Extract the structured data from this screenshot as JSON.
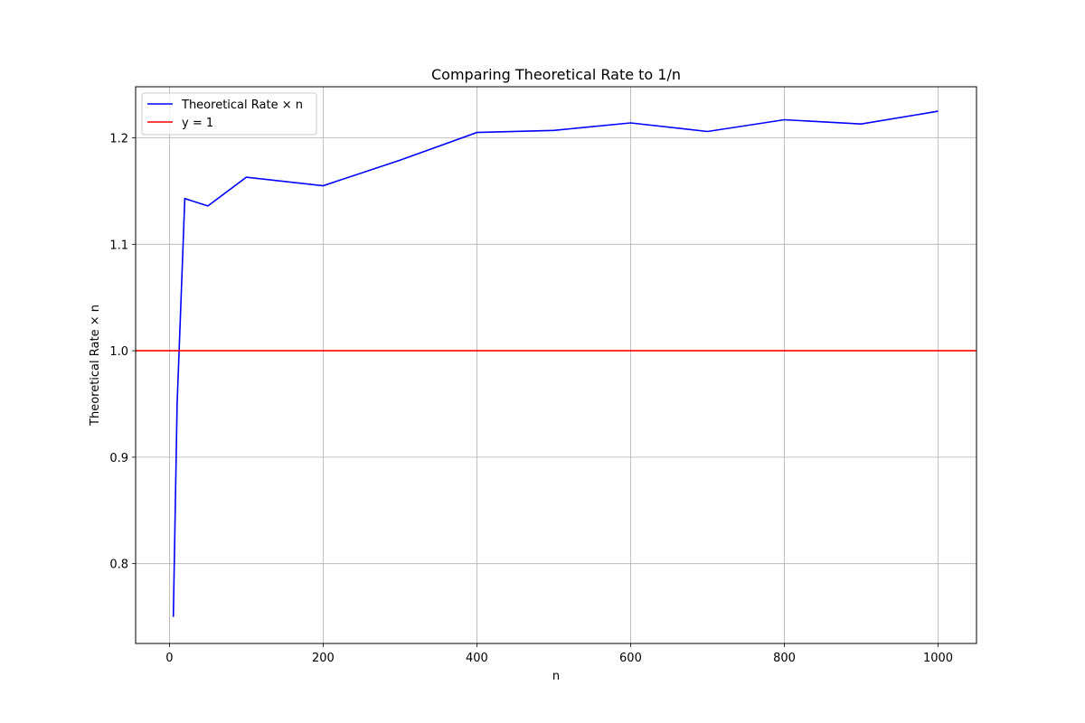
{
  "chart_data": {
    "type": "line",
    "title": "Comparing Theoretical Rate to 1/n",
    "xlabel": "n",
    "ylabel": "Theoretical Rate × n",
    "xlim": [
      -44,
      1050
    ],
    "ylim": [
      0.725,
      1.248
    ],
    "xticks": [
      0,
      200,
      400,
      600,
      800,
      1000
    ],
    "xtick_labels": [
      "0",
      "200",
      "400",
      "600",
      "800",
      "1000"
    ],
    "yticks": [
      0.8,
      0.9,
      1.0,
      1.1,
      1.2
    ],
    "ytick_labels": [
      "0.8",
      "0.9",
      "1.0",
      "1.1",
      "1.2"
    ],
    "grid": true,
    "legend_position": "top-left",
    "series": [
      {
        "name": "Theoretical Rate × n",
        "color": "#0000ff",
        "x": [
          5,
          10,
          20,
          50,
          100,
          200,
          300,
          400,
          500,
          600,
          700,
          800,
          900,
          1000
        ],
        "y": [
          0.75,
          0.95,
          1.143,
          1.136,
          1.163,
          1.155,
          1.179,
          1.205,
          1.207,
          1.214,
          1.206,
          1.217,
          1.213,
          1.225
        ]
      }
    ],
    "hlines": [
      {
        "name": "y = 1",
        "color": "#ff0000",
        "y": 1.0
      }
    ]
  }
}
